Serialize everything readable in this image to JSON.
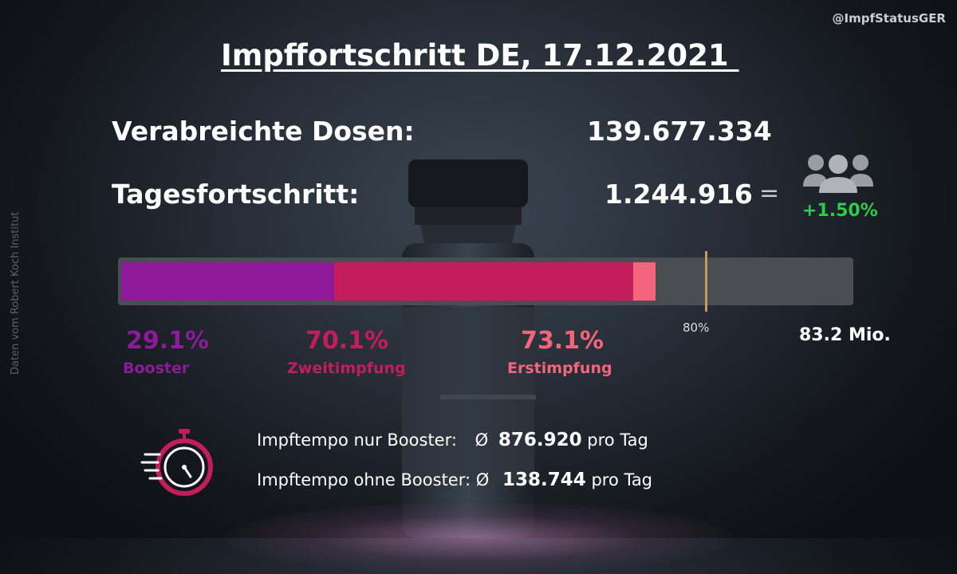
{
  "header": {
    "title": "Impffortschritt DE, 17.12.2021 ",
    "handle": "@ImpfStatusGER",
    "source": "Daten vom Robert Koch Institut"
  },
  "doses": {
    "label": "Verabreichte Dosen:",
    "value": "139.677.334"
  },
  "daily": {
    "label": "Tagesfortschritt:",
    "value": "1.244.916",
    "equals": "=",
    "percent": "+1.50%",
    "icon": "people-group-icon"
  },
  "progress": {
    "population": "83.2 Mio.",
    "marker_label": "80%",
    "marker_value": 0.8,
    "segments": [
      {
        "name": "Booster",
        "percent": "29.1%",
        "value": 0.291,
        "color": "#8e1a9a"
      },
      {
        "name": "Zweitimpfung",
        "percent": "70.1%",
        "value": 0.701,
        "color": "#c41d5c"
      },
      {
        "name": "Erstimpfung",
        "percent": "73.1%",
        "value": 0.731,
        "color": "#f4647c"
      }
    ],
    "colors": {
      "track": "#4a4d52",
      "marker": "#c59a62"
    }
  },
  "tempo": {
    "booster_label": "Impftempo nur Booster:",
    "booster_symbol": "Ø",
    "booster_value": "876.920",
    "booster_unit": "pro Tag",
    "other_label": "Impftempo ohne Booster:",
    "other_symbol": "Ø",
    "other_value": "138.744",
    "other_unit": "pro Tag",
    "icon": "stopwatch-icon"
  },
  "colors": {
    "green": "#2ecc4a",
    "booster": "#8e1a9a",
    "second": "#c41d5c",
    "first": "#f4647c"
  }
}
